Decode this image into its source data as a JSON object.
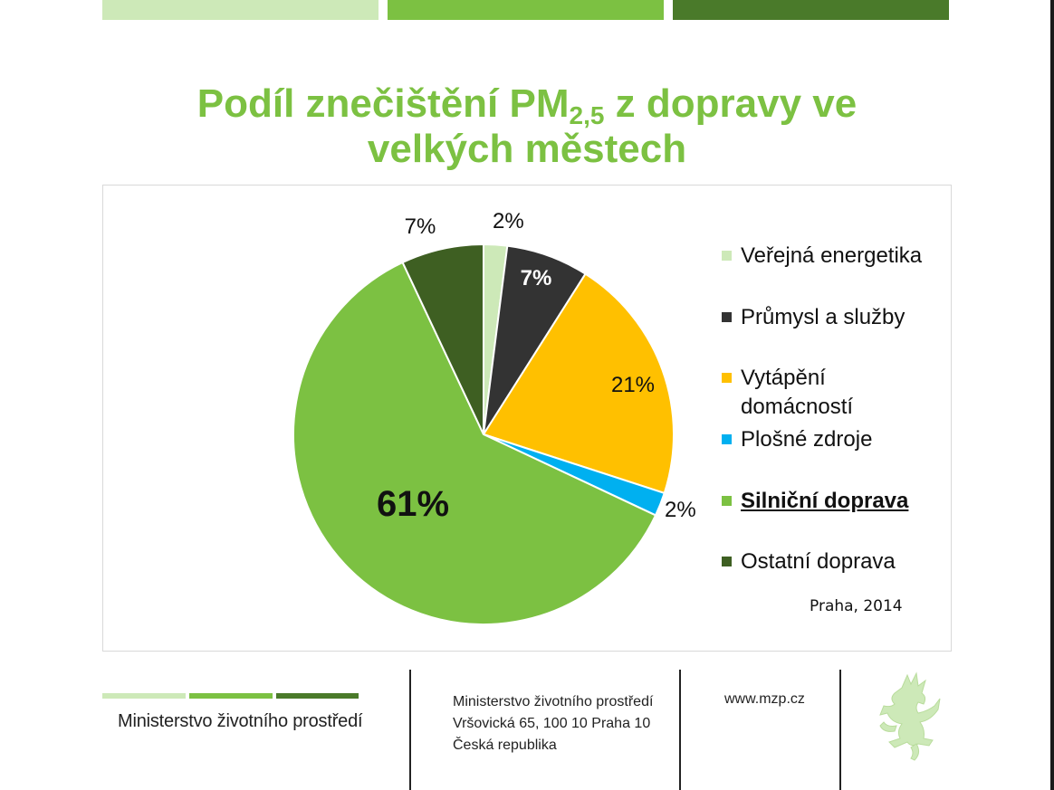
{
  "colors": {
    "bar_light": "#cde9b8",
    "bar_mid": "#7cc142",
    "bar_dark": "#4a7a2a",
    "title": "#7cc142"
  },
  "title": {
    "prefix": "Podíl znečištění PM",
    "subscript": "2,5",
    "suffix": " z dopravy ve",
    "line2": "velkých městech"
  },
  "chart_data": {
    "type": "pie",
    "categories": [
      "Veřejná energetika",
      "Průmysl a služby",
      "Vytápění domácností",
      "Plošné zdroje",
      "Silniční doprava",
      "Ostatní doprava"
    ],
    "values": [
      2,
      7,
      21,
      2,
      61,
      7
    ],
    "labels": [
      "2%",
      "7%",
      "21%",
      "2%",
      "61%",
      "7%"
    ],
    "colors": [
      "#cde9b8",
      "#333333",
      "#ffc000",
      "#00b0f0",
      "#7cc142",
      "#3e5f22"
    ],
    "legend": [
      {
        "line1": "Veřejná energetika"
      },
      {
        "line1": "Průmysl a služby"
      },
      {
        "line1": "Vytápění",
        "line2": "domácností"
      },
      {
        "line1": "Plošné zdroje"
      },
      {
        "line1": "Silniční doprava"
      },
      {
        "line1": "Ostatní doprava"
      }
    ],
    "legend_placement": "right",
    "annotation": "Praha, 2014"
  },
  "footer": {
    "ministry_name": "Ministerstvo životního prostředí",
    "address_line1": "Ministerstvo životního prostředí",
    "address_line2": "Vršovická 65, 100 10  Praha 10",
    "address_line3": "Česká republika",
    "website": "www.mzp.cz",
    "emblem_icon": "lion-emblem-icon"
  }
}
